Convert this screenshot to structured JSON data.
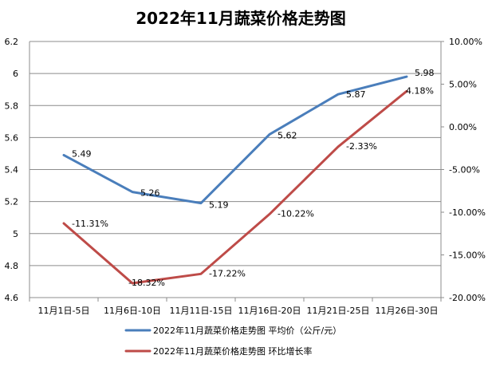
{
  "chart_data": {
    "type": "line",
    "title": "2022年11月蔬菜价格走势图",
    "categories": [
      "11月1日-5日",
      "11月6日-10日",
      "11月11日-15日",
      "11月16日-20日",
      "11月21日-25日",
      "11月26日-30日"
    ],
    "series": [
      {
        "name": "2022年11月蔬菜价格走势图 平均价（公斤/元）",
        "axis": "left",
        "color": "#4a7ebb",
        "values": [
          5.49,
          5.26,
          5.19,
          5.62,
          5.87,
          5.98
        ],
        "labels": [
          "5.49",
          "5.26",
          "5.19",
          "5.62",
          "5.87",
          "5.98"
        ]
      },
      {
        "name": "2022年11月蔬菜价格走势图 环比增长率",
        "axis": "right",
        "color": "#be4b48",
        "values": [
          -11.31,
          -18.32,
          -17.22,
          -10.22,
          -2.33,
          4.18
        ],
        "labels": [
          "-11.31%",
          "-18.32%",
          "-17.22%",
          "-10.22%",
          "-2.33%",
          "4.18%"
        ]
      }
    ],
    "left_axis": {
      "ylim": [
        4.6,
        6.2
      ],
      "ticks": [
        4.6,
        4.8,
        5,
        5.2,
        5.4,
        5.6,
        5.8,
        6,
        6.2
      ],
      "tick_labels": [
        "4.6",
        "4.8",
        "5",
        "5.2",
        "5.4",
        "5.6",
        "5.8",
        "6",
        "6.2"
      ]
    },
    "right_axis": {
      "ylim": [
        -20,
        10
      ],
      "ticks": [
        -20,
        -15,
        -10,
        -5,
        0,
        5,
        10
      ],
      "tick_labels": [
        "-20.00%",
        "-15.00%",
        "-10.00%",
        "-5.00%",
        "0.00%",
        "5.00%",
        "10.00%"
      ]
    },
    "grid": true,
    "legend_position": "bottom"
  }
}
